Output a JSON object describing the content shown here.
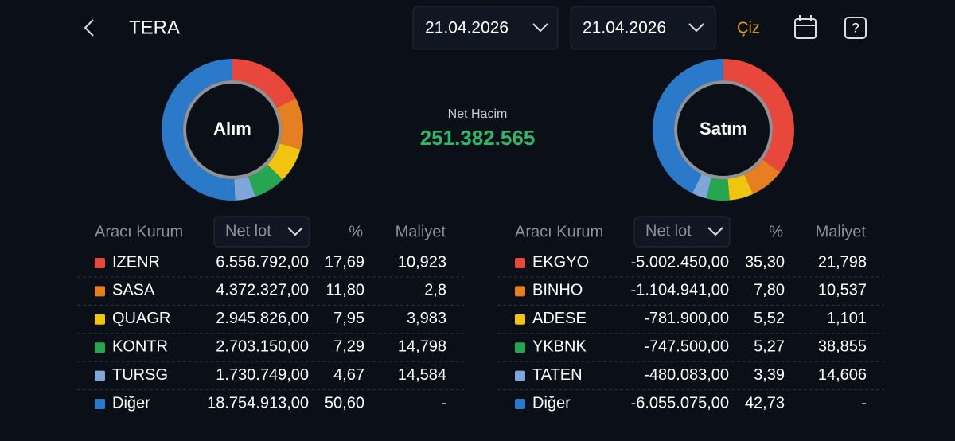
{
  "header": {
    "title": "TERA",
    "date_from": "21.04.2026",
    "date_to": "21.04.2026",
    "draw_button": "Çiz"
  },
  "net_volume": {
    "label": "Net Hacim",
    "value": "251.382.565"
  },
  "buy": {
    "title": "Alım",
    "columns": {
      "broker": "Aracı Kurum",
      "net_lot": "Net lot",
      "percent": "%",
      "cost": "Maliyet"
    },
    "rows": [
      {
        "name": "IZENR",
        "color": "#e8483b",
        "net_lot": "6.556.792,00",
        "percent": {
          "value": 17.69,
          "label": "17,69"
        },
        "cost": "10,923"
      },
      {
        "name": "SASA",
        "color": "#e67e22",
        "net_lot": "4.372.327,00",
        "percent": {
          "value": 11.8,
          "label": "11,80"
        },
        "cost": "2,8"
      },
      {
        "name": "QUAGR",
        "color": "#f1c40f",
        "net_lot": "2.945.826,00",
        "percent": {
          "value": 7.95,
          "label": "7,95"
        },
        "cost": "3,983"
      },
      {
        "name": "KONTR",
        "color": "#27a652",
        "net_lot": "2.703.150,00",
        "percent": {
          "value": 7.29,
          "label": "7,29"
        },
        "cost": "14,798"
      },
      {
        "name": "TURSG",
        "color": "#7ea6d8",
        "net_lot": "1.730.749,00",
        "percent": {
          "value": 4.67,
          "label": "4,67"
        },
        "cost": "14,584"
      },
      {
        "name": "Diğer",
        "color": "#2a7ac9",
        "net_lot": "18.754.913,00",
        "percent": {
          "value": 50.6,
          "label": "50,60"
        },
        "cost": "-"
      }
    ]
  },
  "sell": {
    "title": "Satım",
    "columns": {
      "broker": "Aracı Kurum",
      "net_lot": "Net lot",
      "percent": "%",
      "cost": "Maliyet"
    },
    "rows": [
      {
        "name": "EKGYO",
        "color": "#e8483b",
        "net_lot": "-5.002.450,00",
        "percent": {
          "value": 35.3,
          "label": "35,30"
        },
        "cost": "21,798"
      },
      {
        "name": "BINHO",
        "color": "#e67e22",
        "net_lot": "-1.104.941,00",
        "percent": {
          "value": 7.8,
          "label": "7,80"
        },
        "cost": "10,537"
      },
      {
        "name": "ADESE",
        "color": "#f1c40f",
        "net_lot": "-781.900,00",
        "percent": {
          "value": 5.52,
          "label": "5,52"
        },
        "cost": "1,101"
      },
      {
        "name": "YKBNK",
        "color": "#27a652",
        "net_lot": "-747.500,00",
        "percent": {
          "value": 5.27,
          "label": "5,27"
        },
        "cost": "38,855"
      },
      {
        "name": "TATEN",
        "color": "#7ea6d8",
        "net_lot": "-480.083,00",
        "percent": {
          "value": 3.39,
          "label": "3,39"
        },
        "cost": "14,606"
      },
      {
        "name": "Diğer",
        "color": "#2a7ac9",
        "net_lot": "-6.055.075,00",
        "percent": {
          "value": 42.73,
          "label": "42,73"
        },
        "cost": "-"
      }
    ]
  }
}
